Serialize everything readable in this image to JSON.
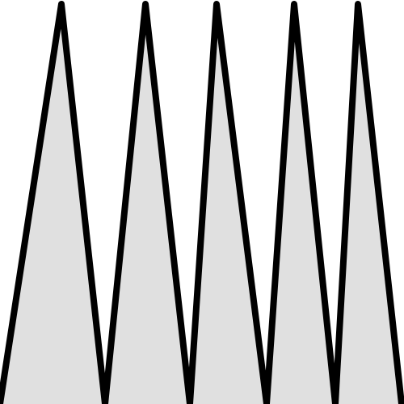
{
  "graphic": {
    "kind": "zigzag-spikes",
    "spike_count": 5,
    "colors": {
      "background": "#ffffff",
      "fill": "#e0e0e0",
      "stroke": "#000000"
    }
  }
}
